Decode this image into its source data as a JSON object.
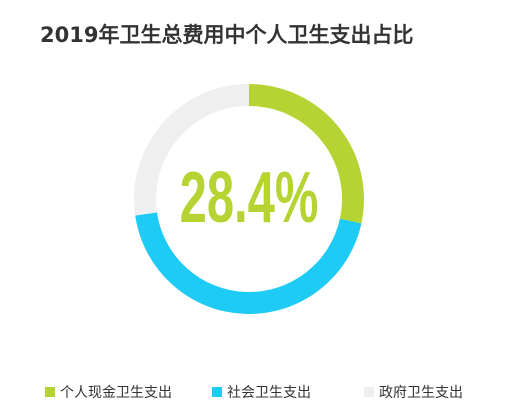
{
  "chart_data": {
    "type": "donut",
    "title": "2019年卫生总费用中个人卫生支出占比",
    "categories": [
      "个人现金卫生支出",
      "社会卫生支出",
      "政府卫生支出"
    ],
    "values": [
      28.4,
      44.3,
      27.3
    ],
    "value_labels": [
      "28.4%",
      null,
      null
    ],
    "colors": [
      "#b5d333",
      "#1ecbf5",
      "#efefef"
    ],
    "legend": "bottom"
  }
}
